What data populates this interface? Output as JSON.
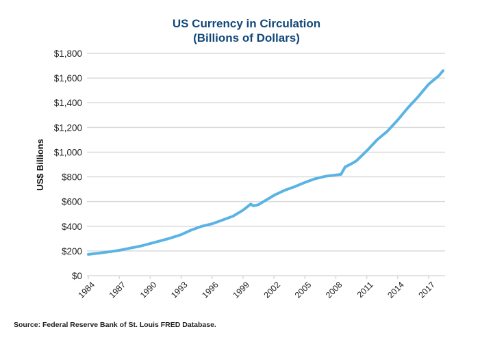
{
  "chart_data": {
    "type": "line",
    "title": "US Currency in Circulation",
    "subtitle": "(Billions of Dollars)",
    "xlabel": "",
    "ylabel": "US$ Billions",
    "ylim": [
      0,
      1800
    ],
    "xlim": [
      1984,
      2018.5
    ],
    "grid": true,
    "legend": "none",
    "y_ticks": [
      0,
      200,
      400,
      600,
      800,
      1000,
      1200,
      1400,
      1600,
      1800
    ],
    "y_tick_labels": [
      "$0",
      "$200",
      "$400",
      "$600",
      "$800",
      "$1,000",
      "$1,200",
      "$1,400",
      "$1,600",
      "$1,800"
    ],
    "x_ticks": [
      1984,
      1987,
      1990,
      1993,
      1996,
      1999,
      2002,
      2005,
      2008,
      2011,
      2014,
      2017
    ],
    "x_tick_labels": [
      "1984",
      "1987",
      "1990",
      "1993",
      "1996",
      "1999",
      "2002",
      "2005",
      "2008",
      "2011",
      "2014",
      "2017"
    ],
    "series": [
      {
        "name": "US Currency in Circulation",
        "color": "#5ab4e3",
        "x": [
          1984,
          1985,
          1986,
          1987,
          1988,
          1989,
          1990,
          1991,
          1992,
          1993,
          1994,
          1995,
          1996,
          1997,
          1998,
          1999,
          1999.75,
          2000,
          2000.5,
          2001,
          2002,
          2003,
          2004,
          2005,
          2006,
          2007,
          2008,
          2008.5,
          2008.9,
          2009.5,
          2010,
          2011,
          2012,
          2013,
          2014,
          2015,
          2016,
          2017,
          2018,
          2018.4
        ],
        "values": [
          172,
          182,
          193,
          205,
          222,
          238,
          260,
          282,
          305,
          332,
          370,
          400,
          420,
          450,
          480,
          530,
          580,
          565,
          575,
          600,
          650,
          690,
          720,
          755,
          785,
          805,
          815,
          820,
          880,
          905,
          930,
          1010,
          1100,
          1170,
          1260,
          1360,
          1450,
          1550,
          1620,
          1660
        ]
      }
    ]
  },
  "source_note": "Source:  Federal Reserve Bank of St. Louis FRED Database."
}
